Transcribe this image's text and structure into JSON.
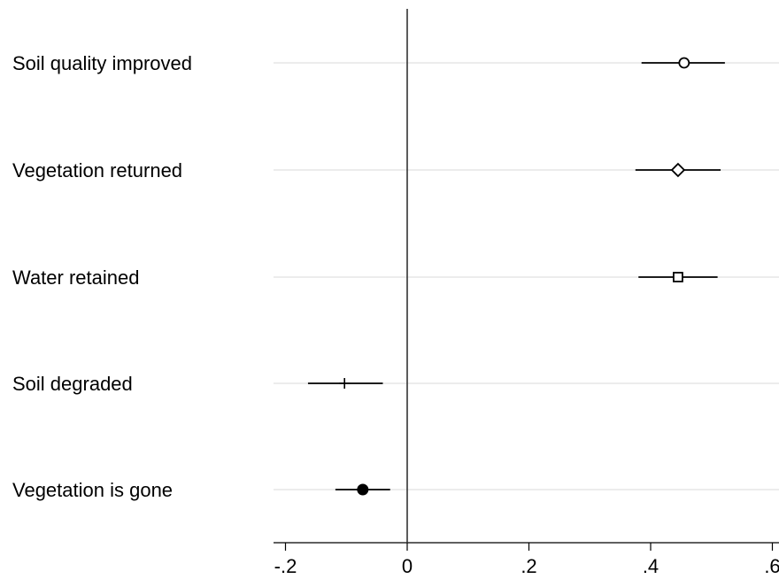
{
  "chart_data": {
    "type": "scatter",
    "subtype": "coefficient-plot",
    "categories": [
      "Soil quality improved",
      "Vegetation returned",
      "Water retained",
      "Soil degraded",
      "Vegetation is gone"
    ],
    "points": [
      {
        "label": "Soil quality improved",
        "estimate": 0.455,
        "ci_low": 0.385,
        "ci_high": 0.522,
        "marker": "hollow-circle"
      },
      {
        "label": "Vegetation returned",
        "estimate": 0.445,
        "ci_low": 0.375,
        "ci_high": 0.515,
        "marker": "hollow-diamond"
      },
      {
        "label": "Water retained",
        "estimate": 0.445,
        "ci_low": 0.38,
        "ci_high": 0.51,
        "marker": "hollow-square"
      },
      {
        "label": "Soil degraded",
        "estimate": -0.103,
        "ci_low": -0.163,
        "ci_high": -0.04,
        "marker": "plus"
      },
      {
        "label": "Vegetation is gone",
        "estimate": -0.073,
        "ci_low": -0.118,
        "ci_high": -0.028,
        "marker": "filled-circle"
      }
    ],
    "x_ticks": [
      -0.2,
      0,
      0.2,
      0.4,
      0.6
    ],
    "x_tick_labels": [
      "-.2",
      "0",
      ".2",
      ".4",
      ".6"
    ],
    "xlim": [
      -0.22,
      0.6
    ],
    "reference_line": 0,
    "grid": "horizontal",
    "title": "",
    "xlabel": "",
    "ylabel": ""
  },
  "colors": {
    "marker": "#000000",
    "grid": "#e6e6e6",
    "axis": "#000000"
  }
}
